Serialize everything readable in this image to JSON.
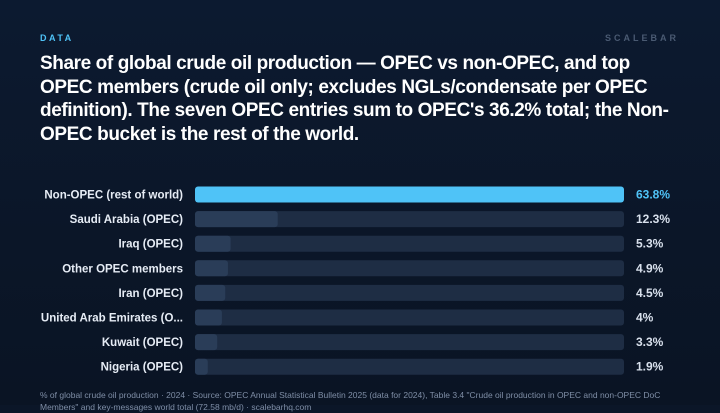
{
  "kicker": "DATA",
  "brand": "SCALEBAR",
  "footer": "% of global crude oil production · 2024 · Source: OPEC Annual Statistical Bulletin 2025 (data for 2024), Table 3.4 \"Crude oil production in OPEC and non-OPEC DoC Members\" and key-messages world total (72.58 mb/d) · scalebarhq.com",
  "colors": {
    "accent": "#4fc3f7",
    "track": "#1e2d44",
    "bar": "#2a3d58",
    "text": "#ffffff",
    "muted": "#7f8ea6"
  },
  "chart_data": {
    "type": "bar",
    "orientation": "horizontal",
    "title": "Share of global crude oil production — OPEC vs non-OPEC, and top OPEC members (crude oil only; excludes NGLs/condensate per OPEC definition). The seven OPEC entries sum to OPEC's 36.2% total; the Non-OPEC bucket is the rest of the world.",
    "categories": [
      "Non-OPEC (rest of world)",
      "Saudi Arabia (OPEC)",
      "Iraq (OPEC)",
      "Other OPEC members",
      "Iran (OPEC)",
      "United Arab Emirates (O...",
      "Kuwait (OPEC)",
      "Nigeria (OPEC)"
    ],
    "values": [
      63.8,
      12.3,
      5.3,
      4.9,
      4.5,
      4.0,
      3.3,
      1.9
    ],
    "value_labels": [
      "63.8%",
      "12.3%",
      "5.3%",
      "4.9%",
      "4.5%",
      "4%",
      "3.3%",
      "1.9%"
    ],
    "xlim": [
      0,
      63.8
    ],
    "highlight_index": 0,
    "grid": false,
    "legend": "none"
  }
}
